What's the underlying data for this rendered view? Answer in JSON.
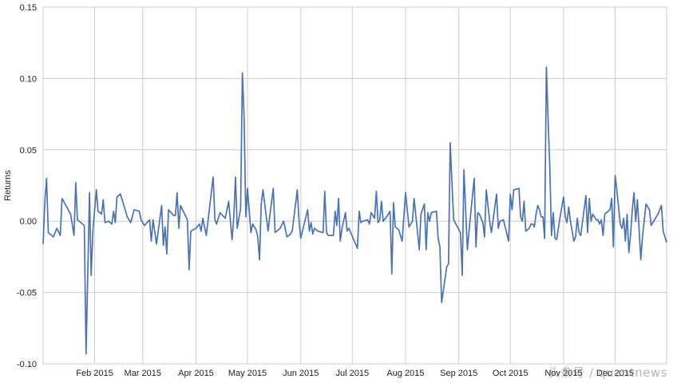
{
  "chart_data": {
    "type": "line",
    "title": "",
    "xlabel": "",
    "ylabel": "Returns",
    "xlim": [
      "2015-01-02",
      "2015-12-31"
    ],
    "ylim": [
      -0.1,
      0.15
    ],
    "y_ticks": [
      -0.1,
      -0.05,
      0.0,
      0.05,
      0.1,
      0.15
    ],
    "y_tick_labels": [
      "-0.10",
      "-0.05",
      "0.00",
      "0.05",
      "0.10",
      "0.15"
    ],
    "x_ticks": [
      "2015-02-01",
      "2015-03-01",
      "2015-04-01",
      "2015-05-01",
      "2015-06-01",
      "2015-07-01",
      "2015-08-01",
      "2015-09-01",
      "2015-10-01",
      "2015-11-01",
      "2015-12-01"
    ],
    "x_tick_labels": [
      "Feb 2015",
      "Mar 2015",
      "Apr 2015",
      "May 2015",
      "Jun 2015",
      "Jul 2015",
      "Aug 2015",
      "Sep 2015",
      "Oct 2015",
      "Nov 2015",
      "Dec 2015"
    ],
    "grid": true,
    "legend": "none",
    "series": [
      {
        "color": "#4c72b0",
        "points": [
          [
            "2015-01-02",
            -0.016
          ],
          [
            "2015-01-03",
            0.014
          ],
          [
            "2015-01-04",
            0.03
          ],
          [
            "2015-01-05",
            -0.008
          ],
          [
            "2015-01-08",
            -0.011
          ],
          [
            "2015-01-10",
            -0.005
          ],
          [
            "2015-01-12",
            -0.01
          ],
          [
            "2015-01-13",
            0.016
          ],
          [
            "2015-01-18",
            0.005
          ],
          [
            "2015-01-20",
            -0.01
          ],
          [
            "2015-01-21",
            0.027
          ],
          [
            "2015-01-22",
            0.001
          ],
          [
            "2015-01-24",
            -0.001
          ],
          [
            "2015-01-26",
            -0.003
          ],
          [
            "2015-01-27",
            -0.093
          ],
          [
            "2015-01-29",
            0.02
          ],
          [
            "2015-01-30",
            -0.038
          ],
          [
            "2015-01-31",
            -0.006
          ],
          [
            "2015-02-02",
            0.022
          ],
          [
            "2015-02-03",
            0.007
          ],
          [
            "2015-02-05",
            0.005
          ],
          [
            "2015-02-06",
            0.015
          ],
          [
            "2015-02-07",
            -0.001
          ],
          [
            "2015-02-09",
            0.0
          ],
          [
            "2015-02-11",
            -0.002
          ],
          [
            "2015-02-12",
            0.007
          ],
          [
            "2015-02-13",
            -0.001
          ],
          [
            "2015-02-14",
            0.017
          ],
          [
            "2015-02-16",
            0.019
          ],
          [
            "2015-02-20",
            0.003
          ],
          [
            "2015-02-22",
            -0.001
          ],
          [
            "2015-02-24",
            0.008
          ],
          [
            "2015-02-27",
            0.007
          ],
          [
            "2015-02-28",
            0.001
          ],
          [
            "2015-03-02",
            -0.003
          ],
          [
            "2015-03-05",
            0.001
          ],
          [
            "2015-03-06",
            -0.014
          ],
          [
            "2015-03-07",
            0.001
          ],
          [
            "2015-03-09",
            -0.016
          ],
          [
            "2015-03-11",
            0.002
          ],
          [
            "2015-03-12",
            0.011
          ],
          [
            "2015-03-13",
            -0.017
          ],
          [
            "2015-03-14",
            -0.004
          ],
          [
            "2015-03-15",
            -0.023
          ],
          [
            "2015-03-16",
            0.008
          ],
          [
            "2015-03-19",
            0.004
          ],
          [
            "2015-03-20",
            0.004
          ],
          [
            "2015-03-21",
            0.02
          ],
          [
            "2015-03-22",
            -0.005
          ],
          [
            "2015-03-23",
            0.011
          ],
          [
            "2015-03-27",
            0.001
          ],
          [
            "2015-03-28",
            -0.034
          ],
          [
            "2015-03-29",
            -0.007
          ],
          [
            "2015-04-01",
            -0.005
          ],
          [
            "2015-04-03",
            -0.002
          ],
          [
            "2015-04-04",
            -0.007
          ],
          [
            "2015-04-05",
            0.002
          ],
          [
            "2015-04-07",
            -0.01
          ],
          [
            "2015-04-11",
            0.031
          ],
          [
            "2015-04-12",
            0.001
          ],
          [
            "2015-04-13",
            -0.002
          ],
          [
            "2015-04-15",
            0.006
          ],
          [
            "2015-04-18",
            0.002
          ],
          [
            "2015-04-20",
            0.014
          ],
          [
            "2015-04-22",
            -0.013
          ],
          [
            "2015-04-23",
            0.003
          ],
          [
            "2015-04-24",
            0.031
          ],
          [
            "2015-04-25",
            -0.005
          ],
          [
            "2015-04-27",
            0.009
          ],
          [
            "2015-04-28",
            0.104
          ],
          [
            "2015-04-29",
            0.074
          ],
          [
            "2015-04-30",
            0.003
          ],
          [
            "2015-05-01",
            0.023
          ],
          [
            "2015-05-03",
            -0.008
          ],
          [
            "2015-05-04",
            -0.002
          ],
          [
            "2015-05-06",
            -0.006
          ],
          [
            "2015-05-07",
            -0.011
          ],
          [
            "2015-05-08",
            -0.027
          ],
          [
            "2015-05-09",
            0.012
          ],
          [
            "2015-05-10",
            0.022
          ],
          [
            "2015-05-13",
            -0.007
          ],
          [
            "2015-05-14",
            0.004
          ],
          [
            "2015-05-16",
            0.023
          ],
          [
            "2015-05-17",
            -0.008
          ],
          [
            "2015-05-20",
            -0.005
          ],
          [
            "2015-05-22",
            0.0
          ],
          [
            "2015-05-24",
            -0.011
          ],
          [
            "2015-05-26",
            -0.009
          ],
          [
            "2015-05-27",
            -0.007
          ],
          [
            "2015-05-30",
            0.022
          ],
          [
            "2015-05-31",
            0.0
          ],
          [
            "2015-06-01",
            -0.012
          ],
          [
            "2015-06-03",
            -0.002
          ],
          [
            "2015-06-05",
            0.008
          ],
          [
            "2015-06-06",
            -0.007
          ],
          [
            "2015-06-07",
            -0.001
          ],
          [
            "2015-06-08",
            -0.009
          ],
          [
            "2015-06-09",
            -0.005
          ],
          [
            "2015-06-11",
            -0.007
          ],
          [
            "2015-06-14",
            -0.008
          ],
          [
            "2015-06-15",
            0.021
          ],
          [
            "2015-06-16",
            -0.008
          ],
          [
            "2015-06-17",
            -0.01
          ],
          [
            "2015-06-20",
            -0.01
          ],
          [
            "2015-06-21",
            0.007
          ],
          [
            "2015-06-22",
            -0.003
          ],
          [
            "2015-06-23",
            0.016
          ],
          [
            "2015-06-24",
            -0.014
          ],
          [
            "2015-06-25",
            -0.005
          ],
          [
            "2015-06-27",
            0.006
          ],
          [
            "2015-06-28",
            -0.007
          ],
          [
            "2015-06-29",
            -0.005
          ],
          [
            "2015-07-04",
            -0.019
          ],
          [
            "2015-07-05",
            0.007
          ],
          [
            "2015-07-06",
            -0.001
          ],
          [
            "2015-07-07",
            0.0
          ],
          [
            "2015-07-10",
            0.001
          ],
          [
            "2015-07-11",
            -0.002
          ],
          [
            "2015-07-12",
            0.006
          ],
          [
            "2015-07-14",
            0.002
          ],
          [
            "2015-07-15",
            0.021
          ],
          [
            "2015-07-16",
            -0.001
          ],
          [
            "2015-07-17",
            0.001
          ],
          [
            "2015-07-18",
            0.014
          ],
          [
            "2015-07-19",
            0.0
          ],
          [
            "2015-07-21",
            0.003
          ],
          [
            "2015-07-23",
            0.007
          ],
          [
            "2015-07-24",
            -0.037
          ],
          [
            "2015-07-25",
            0.013
          ],
          [
            "2015-07-26",
            -0.004
          ],
          [
            "2015-07-28",
            -0.006
          ],
          [
            "2015-07-30",
            -0.014
          ],
          [
            "2015-08-01",
            0.02
          ],
          [
            "2015-08-03",
            -0.004
          ],
          [
            "2015-08-05",
            0.0
          ],
          [
            "2015-08-06",
            0.016
          ],
          [
            "2015-08-09",
            -0.02
          ],
          [
            "2015-08-10",
            0.005
          ],
          [
            "2015-08-12",
            0.012
          ],
          [
            "2015-08-13",
            -0.02
          ],
          [
            "2015-08-14",
            0.006
          ],
          [
            "2015-08-15",
            0.0
          ],
          [
            "2015-08-16",
            0.006
          ],
          [
            "2015-08-19",
            0.007
          ],
          [
            "2015-08-20",
            -0.012
          ],
          [
            "2015-08-21",
            -0.018
          ],
          [
            "2015-08-22",
            -0.057
          ],
          [
            "2015-08-25",
            -0.032
          ],
          [
            "2015-08-26",
            -0.03
          ],
          [
            "2015-08-27",
            0.055
          ],
          [
            "2015-08-29",
            0.001
          ],
          [
            "2015-09-02",
            -0.008
          ],
          [
            "2015-09-03",
            -0.038
          ],
          [
            "2015-09-04",
            0.036
          ],
          [
            "2015-09-06",
            -0.02
          ],
          [
            "2015-09-08",
            0.006
          ],
          [
            "2015-09-10",
            0.03
          ],
          [
            "2015-09-11",
            -0.018
          ],
          [
            "2015-09-12",
            0.006
          ],
          [
            "2015-09-13",
            0.005
          ],
          [
            "2015-09-15",
            -0.001
          ],
          [
            "2015-09-16",
            -0.011
          ],
          [
            "2015-09-17",
            0.022
          ],
          [
            "2015-09-19",
            0.0
          ],
          [
            "2015-09-20",
            -0.008
          ],
          [
            "2015-09-21",
            0.001
          ],
          [
            "2015-09-23",
            0.019
          ],
          [
            "2015-09-24",
            -0.005
          ],
          [
            "2015-09-25",
            0.0
          ],
          [
            "2015-09-27",
            0.001
          ],
          [
            "2015-09-30",
            -0.014
          ],
          [
            "2015-10-01",
            0.019
          ],
          [
            "2015-10-02",
            0.008
          ],
          [
            "2015-10-03",
            0.022
          ],
          [
            "2015-10-06",
            0.023
          ],
          [
            "2015-10-07",
            0.003
          ],
          [
            "2015-10-08",
            0.0
          ],
          [
            "2015-10-09",
            0.014
          ],
          [
            "2015-10-10",
            -0.007
          ],
          [
            "2015-10-12",
            -0.005
          ],
          [
            "2015-10-13",
            -0.002
          ],
          [
            "2015-10-14",
            -0.002
          ],
          [
            "2015-10-15",
            -0.004
          ],
          [
            "2015-10-16",
            0.005
          ],
          [
            "2015-10-17",
            0.011
          ],
          [
            "2015-10-18",
            0.008
          ],
          [
            "2015-10-19",
            0.003
          ],
          [
            "2015-10-20",
            0.003
          ],
          [
            "2015-10-21",
            -0.012
          ],
          [
            "2015-10-22",
            0.108
          ],
          [
            "2015-10-23",
            0.072
          ],
          [
            "2015-10-24",
            0.037
          ],
          [
            "2015-10-25",
            -0.01
          ],
          [
            "2015-10-26",
            0.006
          ],
          [
            "2015-10-27",
            -0.012
          ],
          [
            "2015-10-28",
            -0.013
          ],
          [
            "2015-10-30",
            0.003
          ],
          [
            "2015-11-01",
            0.017
          ],
          [
            "2015-11-02",
            0.003
          ],
          [
            "2015-11-03",
            -0.001
          ],
          [
            "2015-11-04",
            0.01
          ],
          [
            "2015-11-05",
            0.0
          ],
          [
            "2015-11-07",
            -0.014
          ],
          [
            "2015-11-08",
            -0.011
          ],
          [
            "2015-11-09",
            0.002
          ],
          [
            "2015-11-10",
            -0.008
          ],
          [
            "2015-11-11",
            -0.01
          ],
          [
            "2015-11-14",
            0.018
          ],
          [
            "2015-11-15",
            -0.008
          ],
          [
            "2015-11-16",
            0.016
          ],
          [
            "2015-11-17",
            0.0
          ],
          [
            "2015-11-18",
            0.005
          ],
          [
            "2015-11-20",
            0.001
          ],
          [
            "2015-11-21",
            0.001
          ],
          [
            "2015-11-22",
            -0.002
          ],
          [
            "2015-11-23",
            0.001
          ],
          [
            "2015-11-24",
            -0.01
          ],
          [
            "2015-11-25",
            0.005
          ],
          [
            "2015-11-27",
            0.007
          ],
          [
            "2015-11-28",
            0.008
          ],
          [
            "2015-11-29",
            0.016
          ],
          [
            "2015-11-30",
            -0.018
          ],
          [
            "2015-12-01",
            0.032
          ],
          [
            "2015-12-02",
            0.022
          ],
          [
            "2015-12-03",
            0.01
          ],
          [
            "2015-12-04",
            -0.002
          ],
          [
            "2015-12-05",
            -0.005
          ],
          [
            "2015-12-06",
            0.002
          ],
          [
            "2015-12-07",
            -0.014
          ],
          [
            "2015-12-08",
            0.005
          ],
          [
            "2015-12-09",
            -0.022
          ],
          [
            "2015-12-10",
            -0.01
          ],
          [
            "2015-12-11",
            0.008
          ],
          [
            "2015-12-12",
            0.02
          ],
          [
            "2015-12-13",
            0.0
          ],
          [
            "2015-12-14",
            0.015
          ],
          [
            "2015-12-16",
            -0.027
          ],
          [
            "2015-12-17",
            -0.01
          ],
          [
            "2015-12-19",
            0.012
          ],
          [
            "2015-12-21",
            0.008
          ],
          [
            "2015-12-22",
            -0.003
          ],
          [
            "2015-12-23",
            -0.001
          ],
          [
            "2015-12-24",
            0.001
          ],
          [
            "2015-12-26",
            0.005
          ],
          [
            "2015-12-28",
            0.011
          ],
          [
            "2015-12-29",
            -0.007
          ],
          [
            "2015-12-31",
            -0.015
          ]
        ]
      }
    ]
  },
  "watermark": "头条号 / quantnews"
}
